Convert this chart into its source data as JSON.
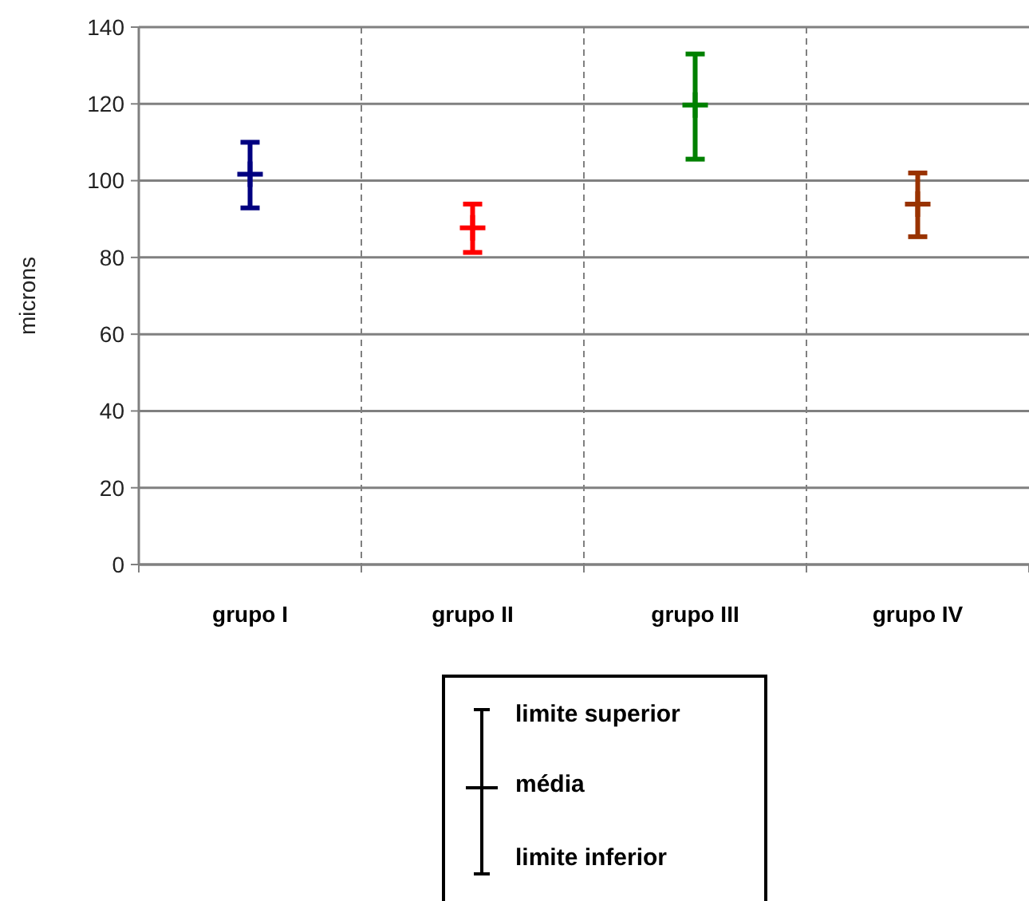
{
  "chart_data": {
    "type": "scatter",
    "ylabel": "microns",
    "categories": [
      "grupo I",
      "grupo II",
      "grupo III",
      "grupo IV"
    ],
    "values": [
      101.7,
      87.7,
      119.7,
      93.9
    ],
    "errors": [
      [
        92.9,
        110
      ],
      [
        81.3,
        93.9
      ],
      [
        105.6,
        133
      ],
      [
        85.4,
        102
      ]
    ],
    "colors": [
      "#000080",
      "#ff0000",
      "#008000",
      "#993300"
    ],
    "marker": "cross",
    "ylim": [
      0,
      140
    ],
    "yticks": [
      0,
      20,
      40,
      60,
      80,
      100,
      120,
      140
    ],
    "grid": "y",
    "annotations": [
      "limite superior",
      "média",
      "limite inferior"
    ]
  }
}
